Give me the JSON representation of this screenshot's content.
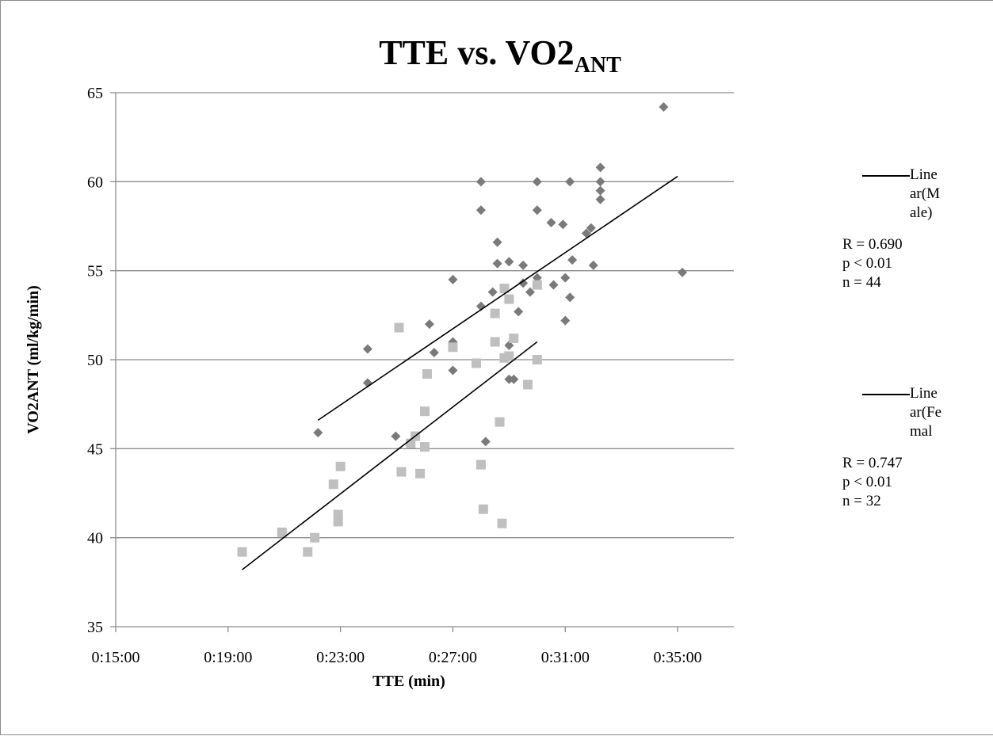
{
  "chart_data": {
    "type": "scatter",
    "title": "TTE vs. VO2",
    "title_subscript": "ANT",
    "xlabel": "TTE (min)",
    "ylabel": "VO2ANT (ml/kg/min)",
    "xlim": [
      "0:15:00",
      "0:37:00"
    ],
    "ylim": [
      35,
      65
    ],
    "x_ticks": [
      "0:15:00",
      "0:19:00",
      "0:23:00",
      "0:27:00",
      "0:31:00",
      "0:35:00"
    ],
    "y_ticks": [
      35,
      40,
      45,
      50,
      55,
      60,
      65
    ],
    "grid": "horizontal",
    "legend_position": "right",
    "series": [
      {
        "marker": "diamond",
        "color": "#7a7a7a",
        "points": [
          [
            "0:22:12",
            45.9
          ],
          [
            "0:23:58",
            50.6
          ],
          [
            "0:23:58",
            48.7
          ],
          [
            "0:24:58",
            45.7
          ],
          [
            "0:26:10",
            52.0
          ],
          [
            "0:26:20",
            50.4
          ],
          [
            "0:27:00",
            54.5
          ],
          [
            "0:27:00",
            51.0
          ],
          [
            "0:27:00",
            49.4
          ],
          [
            "0:28:00",
            60.0
          ],
          [
            "0:28:00",
            58.4
          ],
          [
            "0:28:00",
            53.0
          ],
          [
            "0:28:10",
            45.4
          ],
          [
            "0:28:25",
            53.8
          ],
          [
            "0:28:35",
            56.6
          ],
          [
            "0:28:35",
            55.4
          ],
          [
            "0:29:00",
            55.5
          ],
          [
            "0:29:00",
            50.8
          ],
          [
            "0:29:00",
            48.9
          ],
          [
            "0:29:10",
            48.9
          ],
          [
            "0:29:20",
            52.7
          ],
          [
            "0:29:30",
            55.3
          ],
          [
            "0:29:30",
            54.3
          ],
          [
            "0:29:45",
            53.8
          ],
          [
            "0:30:00",
            60.0
          ],
          [
            "0:30:00",
            58.4
          ],
          [
            "0:30:00",
            54.6
          ],
          [
            "0:30:30",
            57.7
          ],
          [
            "0:30:35",
            54.2
          ],
          [
            "0:30:55",
            57.6
          ],
          [
            "0:31:00",
            54.6
          ],
          [
            "0:31:10",
            60.0
          ],
          [
            "0:31:10",
            53.5
          ],
          [
            "0:31:15",
            55.6
          ],
          [
            "0:31:00",
            52.2
          ],
          [
            "0:31:45",
            57.1
          ],
          [
            "0:31:55",
            57.4
          ],
          [
            "0:32:00",
            55.3
          ],
          [
            "0:32:15",
            60.8
          ],
          [
            "0:32:15",
            60.0
          ],
          [
            "0:32:15",
            59.5
          ],
          [
            "0:32:15",
            59.0
          ],
          [
            "0:34:30",
            64.2
          ],
          [
            "0:35:10",
            54.9
          ]
        ]
      },
      {
        "marker": "square",
        "color": "#bfbfbf",
        "points": [
          [
            "0:19:30",
            39.2
          ],
          [
            "0:20:55",
            40.3
          ],
          [
            "0:21:50",
            39.2
          ],
          [
            "0:22:05",
            40.0
          ],
          [
            "0:22:45",
            43.0
          ],
          [
            "0:22:55",
            40.9
          ],
          [
            "0:22:55",
            41.3
          ],
          [
            "0:23:00",
            44.0
          ],
          [
            "0:25:05",
            51.8
          ],
          [
            "0:25:10",
            43.7
          ],
          [
            "0:25:30",
            45.3
          ],
          [
            "0:25:40",
            45.7
          ],
          [
            "0:25:50",
            43.6
          ],
          [
            "0:26:00",
            47.1
          ],
          [
            "0:26:00",
            45.1
          ],
          [
            "0:26:05",
            49.2
          ],
          [
            "0:27:00",
            50.7
          ],
          [
            "0:27:50",
            49.8
          ],
          [
            "0:28:00",
            44.1
          ],
          [
            "0:28:05",
            41.6
          ],
          [
            "0:28:30",
            52.6
          ],
          [
            "0:28:30",
            51.0
          ],
          [
            "0:28:40",
            46.5
          ],
          [
            "0:28:45",
            40.8
          ],
          [
            "0:28:50",
            54.0
          ],
          [
            "0:28:50",
            50.1
          ],
          [
            "0:29:00",
            53.4
          ],
          [
            "0:29:00",
            50.2
          ],
          [
            "0:29:10",
            51.2
          ],
          [
            "0:29:40",
            48.6
          ],
          [
            "0:30:00",
            54.2
          ],
          [
            "0:30:00",
            50.0
          ]
        ]
      }
    ],
    "trendlines": [
      {
        "x": [
          "0:22:12",
          "0:35:00"
        ],
        "y": [
          46.6,
          60.3
        ]
      },
      {
        "x": [
          "0:19:30",
          "0:30:00"
        ],
        "y": [
          38.2,
          51.0
        ]
      }
    ]
  },
  "legend": [
    {
      "label": "Linear(Male)",
      "stats": [
        "R = 0.690",
        "p < 0.01",
        "n = 44"
      ]
    },
    {
      "label": "Linear(Female)",
      "stats": [
        "R = 0.747",
        "p < 0.01",
        "n = 32"
      ]
    }
  ]
}
